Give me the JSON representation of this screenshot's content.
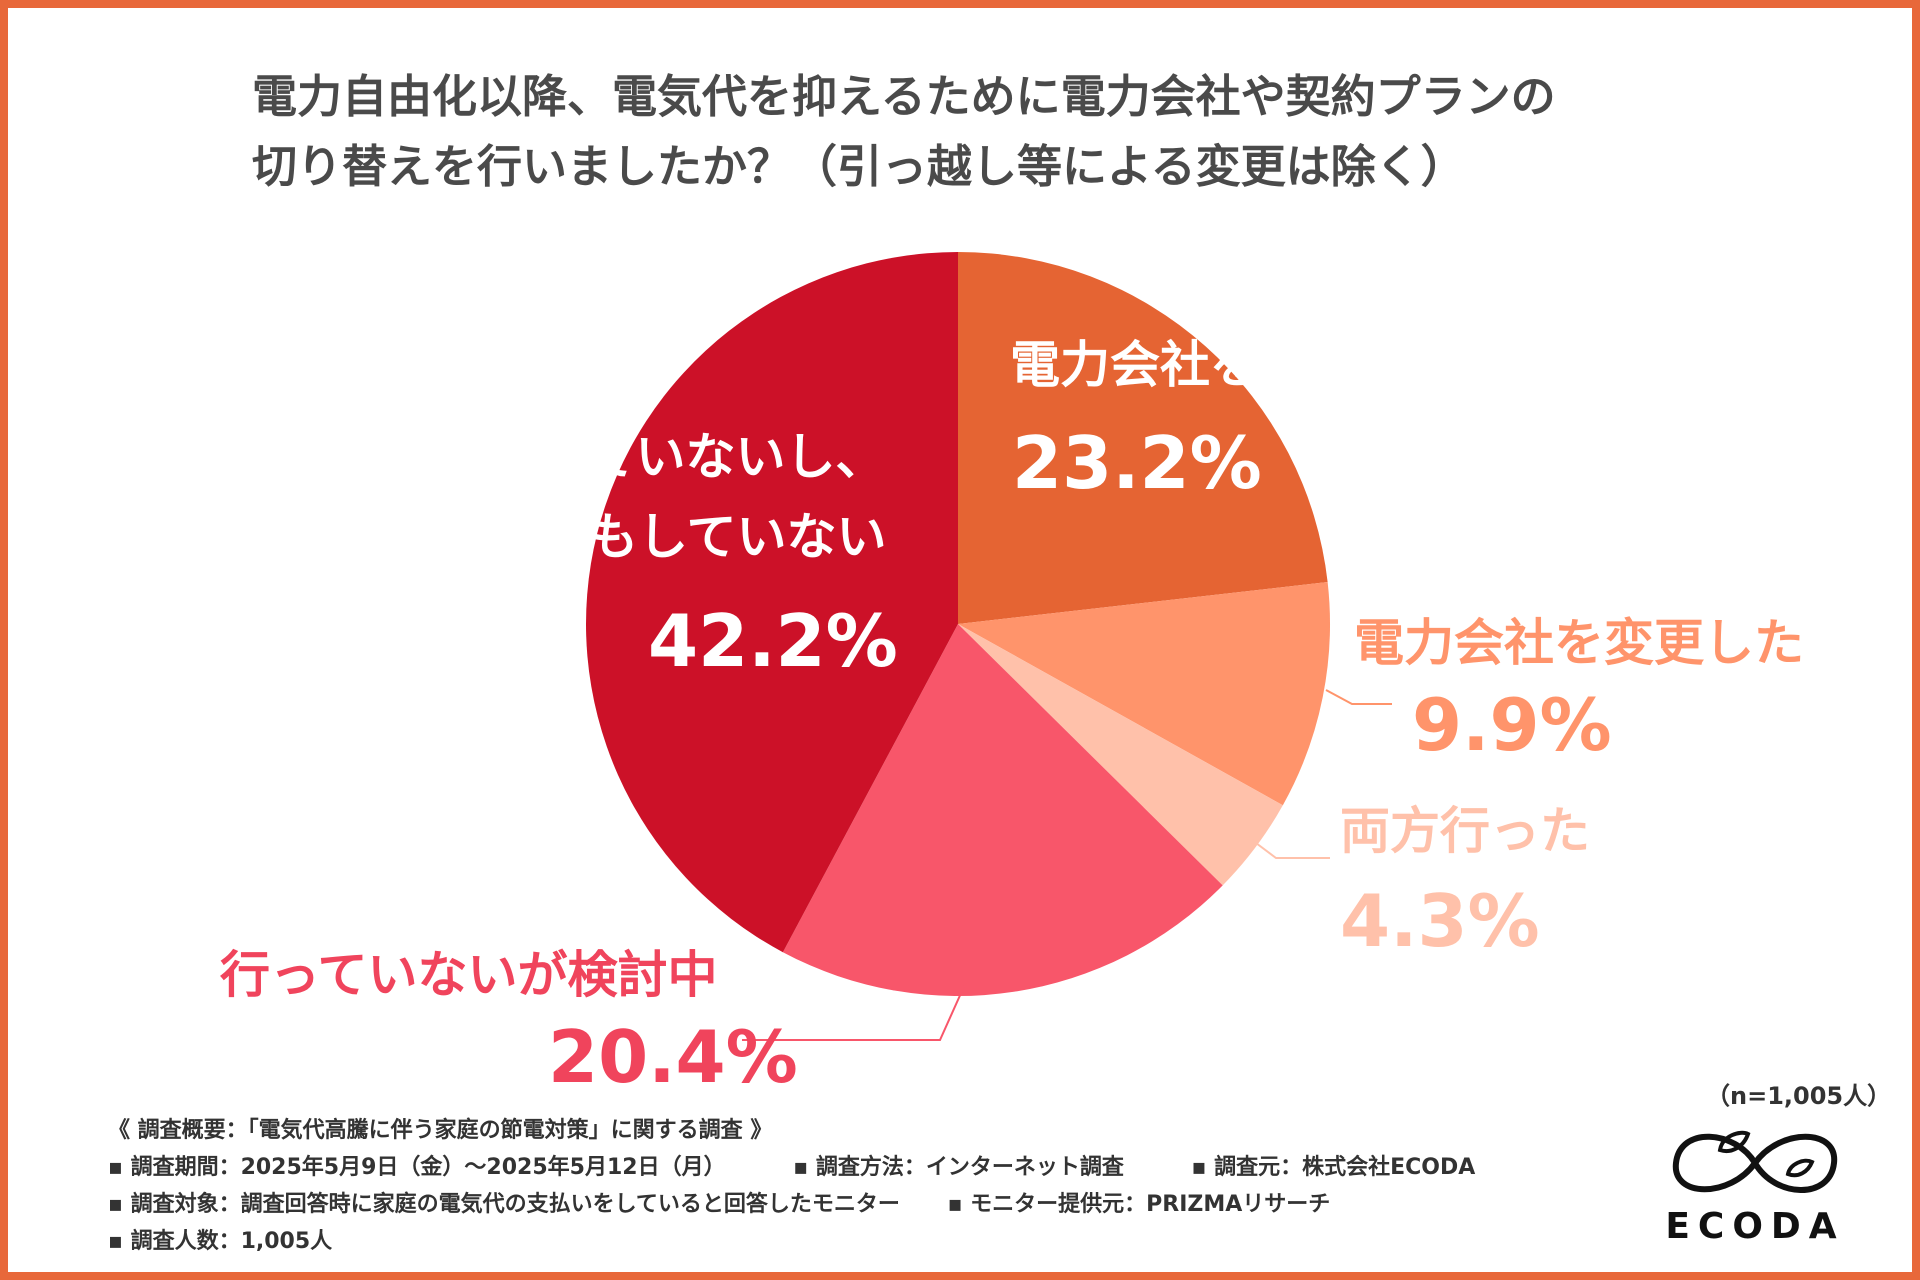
{
  "title": {
    "line1": "電力自由化以降、電気代を抑えるために電力会社や契約プランの",
    "line2": "切り替えを行いましたか？（引っ越し等による変更は除く）"
  },
  "chart_data": {
    "type": "pie",
    "start_angle_deg": 0,
    "direction": "clockwise",
    "slices": [
      {
        "label": "電力会社を変更した",
        "value": 23.2,
        "value_text": "23.2%",
        "color": "#e56433"
      },
      {
        "label": "電力会社を変更した",
        "value": 9.9,
        "value_text": "9.9%",
        "color": "#ff946b"
      },
      {
        "label": "両方行った",
        "value": 4.3,
        "value_text": "4.3%",
        "color": "#ffc1aa"
      },
      {
        "label": "行っていないが検討中",
        "value": 20.4,
        "value_text": "20.4%",
        "color": "#f8566a"
      },
      {
        "label_lines": [
          "行っていないし、",
          "検討もしていない"
        ],
        "value": 42.2,
        "value_text": "42.2%",
        "color": "#cc1128"
      }
    ]
  },
  "notes": {
    "heading": "《 調査概要：「電気代高騰に伴う家庭の節電対策」に関する調査 》",
    "period": "▪ 調査期間：2025年5月9日（金）～2025年5月12日（月）",
    "method": "▪ 調査方法：インターネット調査",
    "source": "▪ 調査元：株式会社ECODA",
    "target": "▪ 調査対象：調査回答時に家庭の電気代の支払いをしていると回答したモニター",
    "provider": "▪ モニター提供元：PRIZMAリサーチ",
    "count": "▪ 調査人数：1,005人"
  },
  "sample_size": "（n=1,005人）",
  "logo": {
    "text": "ECODA"
  }
}
